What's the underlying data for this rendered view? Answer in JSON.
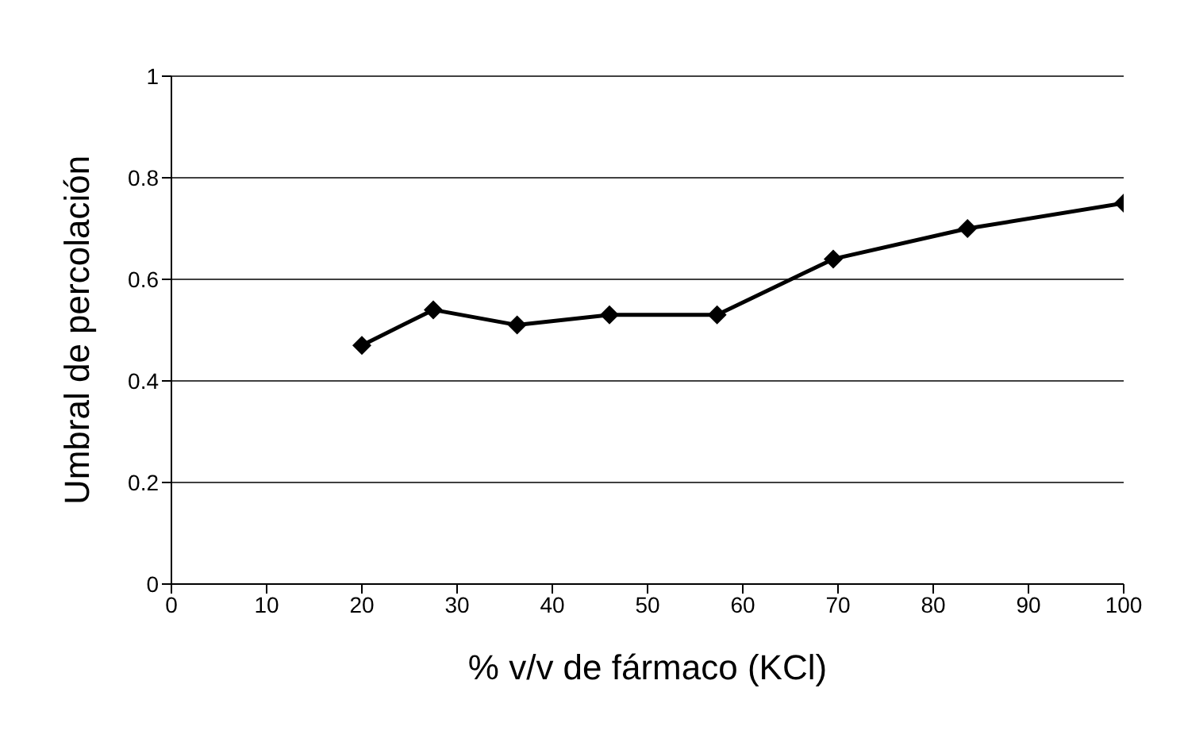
{
  "chart_data": {
    "type": "line",
    "xlabel": "% v/v de fármaco (KCl)",
    "ylabel": "Umbral de percolación",
    "x": [
      20,
      27.5,
      36.3,
      46,
      57.3,
      69.5,
      83.6,
      100
    ],
    "series": [
      {
        "color": "#000000",
        "values": [
          0.47,
          0.54,
          0.51,
          0.53,
          0.53,
          0.64,
          0.7,
          0.75
        ]
      }
    ],
    "xlim": [
      0,
      100
    ],
    "xticks": [
      0,
      10,
      20,
      30,
      40,
      50,
      60,
      70,
      80,
      90,
      100
    ],
    "ylim": [
      0,
      1
    ],
    "yticks": [
      0,
      0.2,
      0.4,
      0.6,
      0.8,
      1
    ],
    "grid": "y",
    "marker": "diamond",
    "line_style": "solid",
    "legend": false
  }
}
